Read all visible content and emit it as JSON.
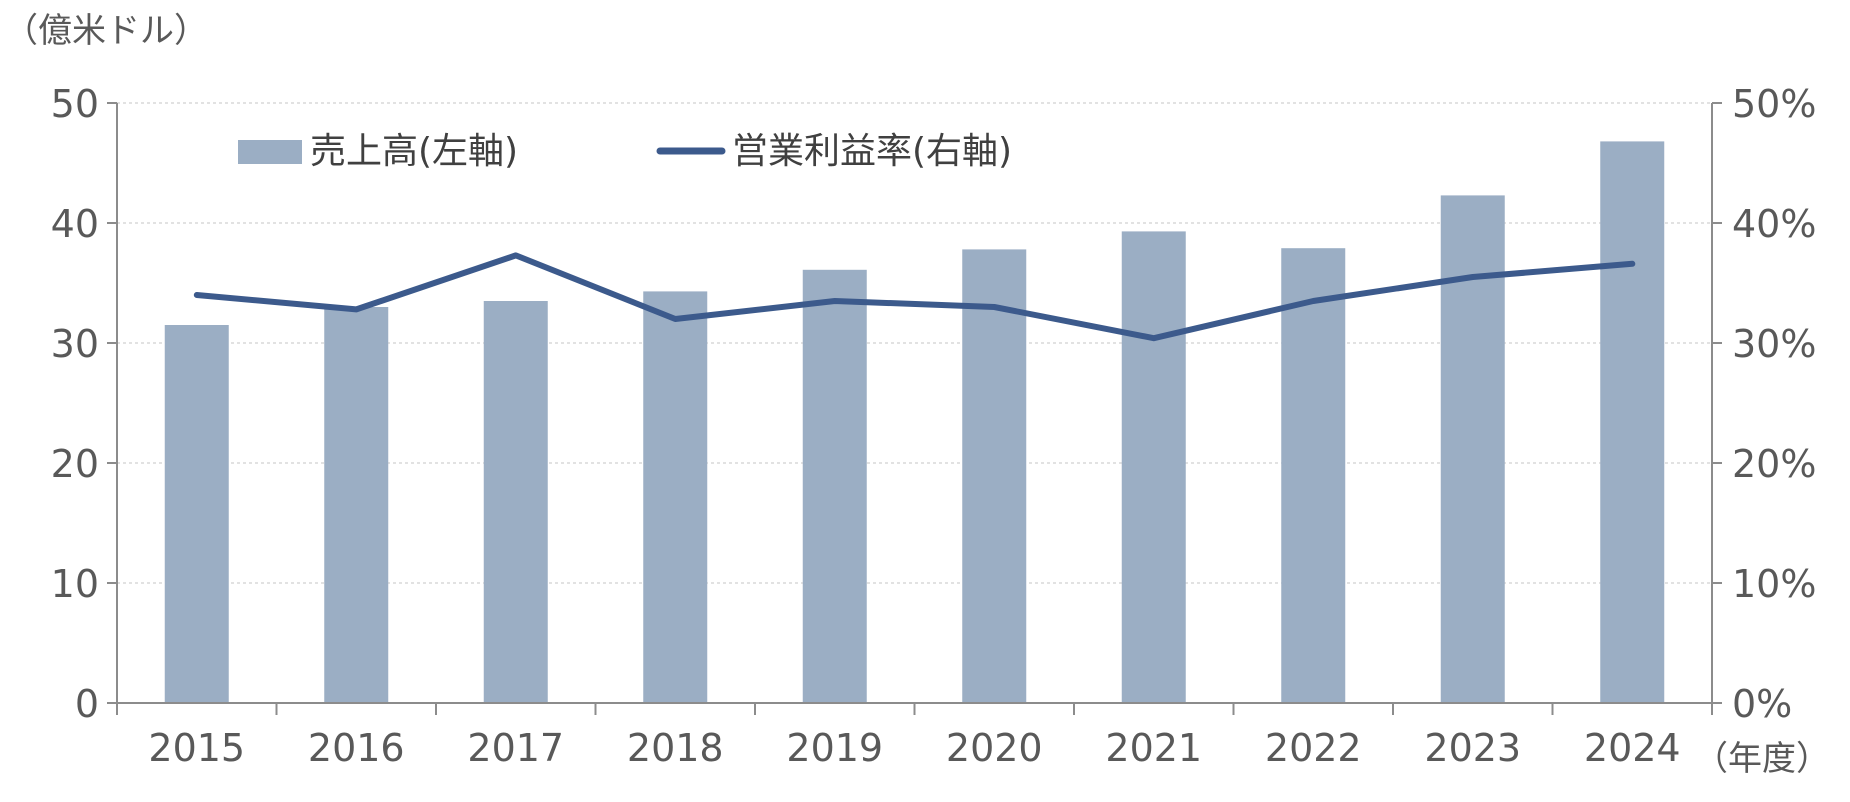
{
  "chart_data": {
    "type": "bar",
    "categories": [
      "2015",
      "2016",
      "2017",
      "2018",
      "2019",
      "2020",
      "2021",
      "2022",
      "2023",
      "2024"
    ],
    "series": [
      {
        "name": "売上高(左軸)",
        "type": "bar",
        "axis": "left",
        "values": [
          31.5,
          33.0,
          33.5,
          34.3,
          36.1,
          37.8,
          39.3,
          37.9,
          42.3,
          46.8
        ],
        "color": "#9BAEC4"
      },
      {
        "name": "営業利益率(右軸)",
        "type": "line",
        "axis": "right",
        "values": [
          34.0,
          32.8,
          37.3,
          32.0,
          33.5,
          33.0,
          30.4,
          33.5,
          35.5,
          36.6
        ],
        "color": "#3C5A8C"
      }
    ],
    "ylabel": "（億米ドル）",
    "xlabel": "（年度）",
    "ylim": [
      0,
      50
    ],
    "y2lim": [
      0,
      50
    ],
    "yticks": [
      "0",
      "10",
      "20",
      "30",
      "40",
      "50"
    ],
    "y2ticks": [
      "0%",
      "10%",
      "20%",
      "30%",
      "40%",
      "50%"
    ],
    "grid": true,
    "legend_position": "top-left",
    "colors": {
      "axis": "#8C8C8C",
      "grid": "#D9D9D9",
      "tick_text": "#595959"
    }
  }
}
